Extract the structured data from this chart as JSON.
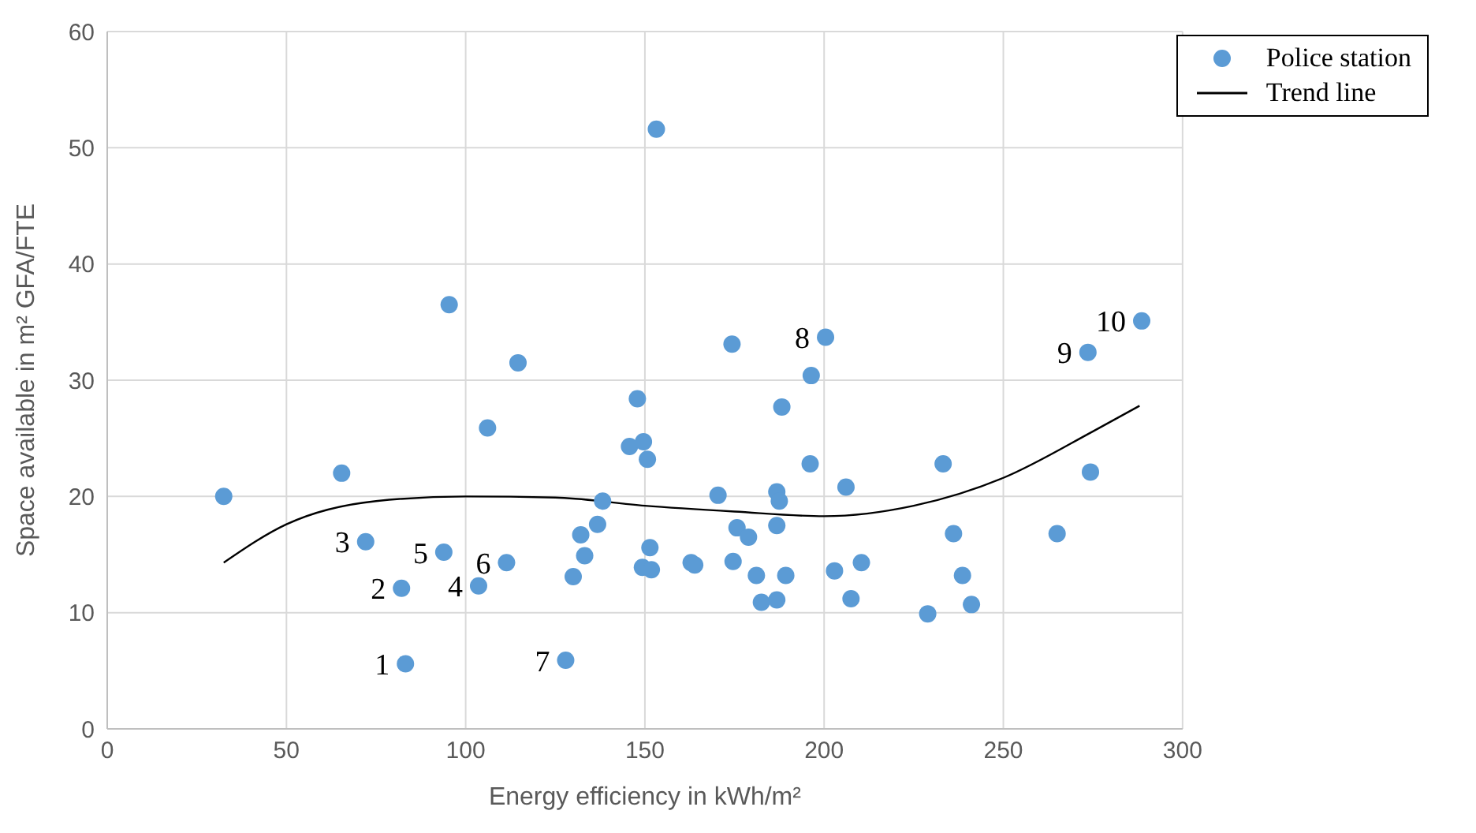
{
  "chart_data": {
    "type": "scatter",
    "xlabel": "Energy efficiency in kWh/m²",
    "ylabel": "Space available in m² GFA/FTE",
    "xlim": [
      0,
      300
    ],
    "xticks": [
      0,
      50,
      100,
      150,
      200,
      250,
      300
    ],
    "ylim": [
      0,
      60
    ],
    "yticks": [
      0,
      10,
      20,
      30,
      40,
      50,
      60
    ],
    "grid": true,
    "legend": "top right",
    "series": [
      {
        "name": "Police station",
        "marker": "circle",
        "color": "#5b9bd5",
        "x": [
          32.5,
          65.4,
          72.1,
          82.1,
          83.2,
          95.4,
          93.9,
          103.6,
          106.1,
          111.4,
          114.6,
          127.9,
          130,
          132.1,
          133.2,
          136.8,
          138.2,
          145.7,
          147.9,
          149.3,
          149.6,
          150.7,
          151.4,
          151.8,
          153.2,
          162.9,
          163.9,
          170.4,
          174.3,
          174.6,
          175.7,
          178.9,
          181.1,
          182.5,
          186.8,
          187.5,
          186.8,
          186.8,
          188.2,
          189.3,
          196.4,
          196.1,
          200.4,
          202.9,
          206.1,
          207.5,
          210.4,
          228.9,
          233.2,
          236.1,
          238.6,
          241.1,
          265,
          273.6,
          274.3,
          288.6
        ],
        "values": [
          20,
          22,
          16.1,
          12.1,
          5.6,
          36.5,
          15.2,
          12.3,
          25.9,
          14.3,
          31.5,
          5.9,
          13.1,
          16.7,
          14.9,
          17.6,
          19.6,
          24.3,
          28.4,
          13.9,
          24.7,
          23.2,
          15.6,
          13.7,
          51.6,
          14.3,
          14.1,
          20.1,
          33.1,
          14.4,
          17.3,
          16.5,
          13.2,
          10.9,
          20.4,
          19.6,
          17.5,
          11.1,
          27.7,
          13.2,
          30.4,
          22.8,
          33.7,
          13.6,
          20.8,
          11.2,
          14.3,
          9.9,
          22.8,
          16.8,
          13.2,
          10.7,
          16.8,
          32.4,
          22.1,
          35.1
        ]
      },
      {
        "name": "Trend line",
        "type": "line",
        "marker": "none",
        "color": "#000000",
        "x": [
          32.5,
          50,
          75,
          100,
          125,
          150,
          175,
          200,
          225,
          250,
          275,
          288
        ],
        "values": [
          14.3,
          17.6,
          19.6,
          20,
          19.9,
          19.2,
          18.7,
          18.3,
          19.2,
          21.6,
          25.6,
          27.8
        ]
      }
    ],
    "annotations": [
      {
        "text": "1",
        "x": 83.2,
        "y": 5.6
      },
      {
        "text": "2",
        "x": 82.1,
        "y": 12.1
      },
      {
        "text": "3",
        "x": 72.1,
        "y": 16.1
      },
      {
        "text": "4",
        "x": 103.6,
        "y": 12.3
      },
      {
        "text": "5",
        "x": 93.9,
        "y": 15.2
      },
      {
        "text": "6",
        "x": 111.4,
        "y": 14.3
      },
      {
        "text": "7",
        "x": 127.9,
        "y": 5.9
      },
      {
        "text": "8",
        "x": 200.4,
        "y": 33.7
      },
      {
        "text": "9",
        "x": 273.6,
        "y": 32.4
      },
      {
        "text": "10",
        "x": 288.6,
        "y": 35.1
      }
    ]
  }
}
